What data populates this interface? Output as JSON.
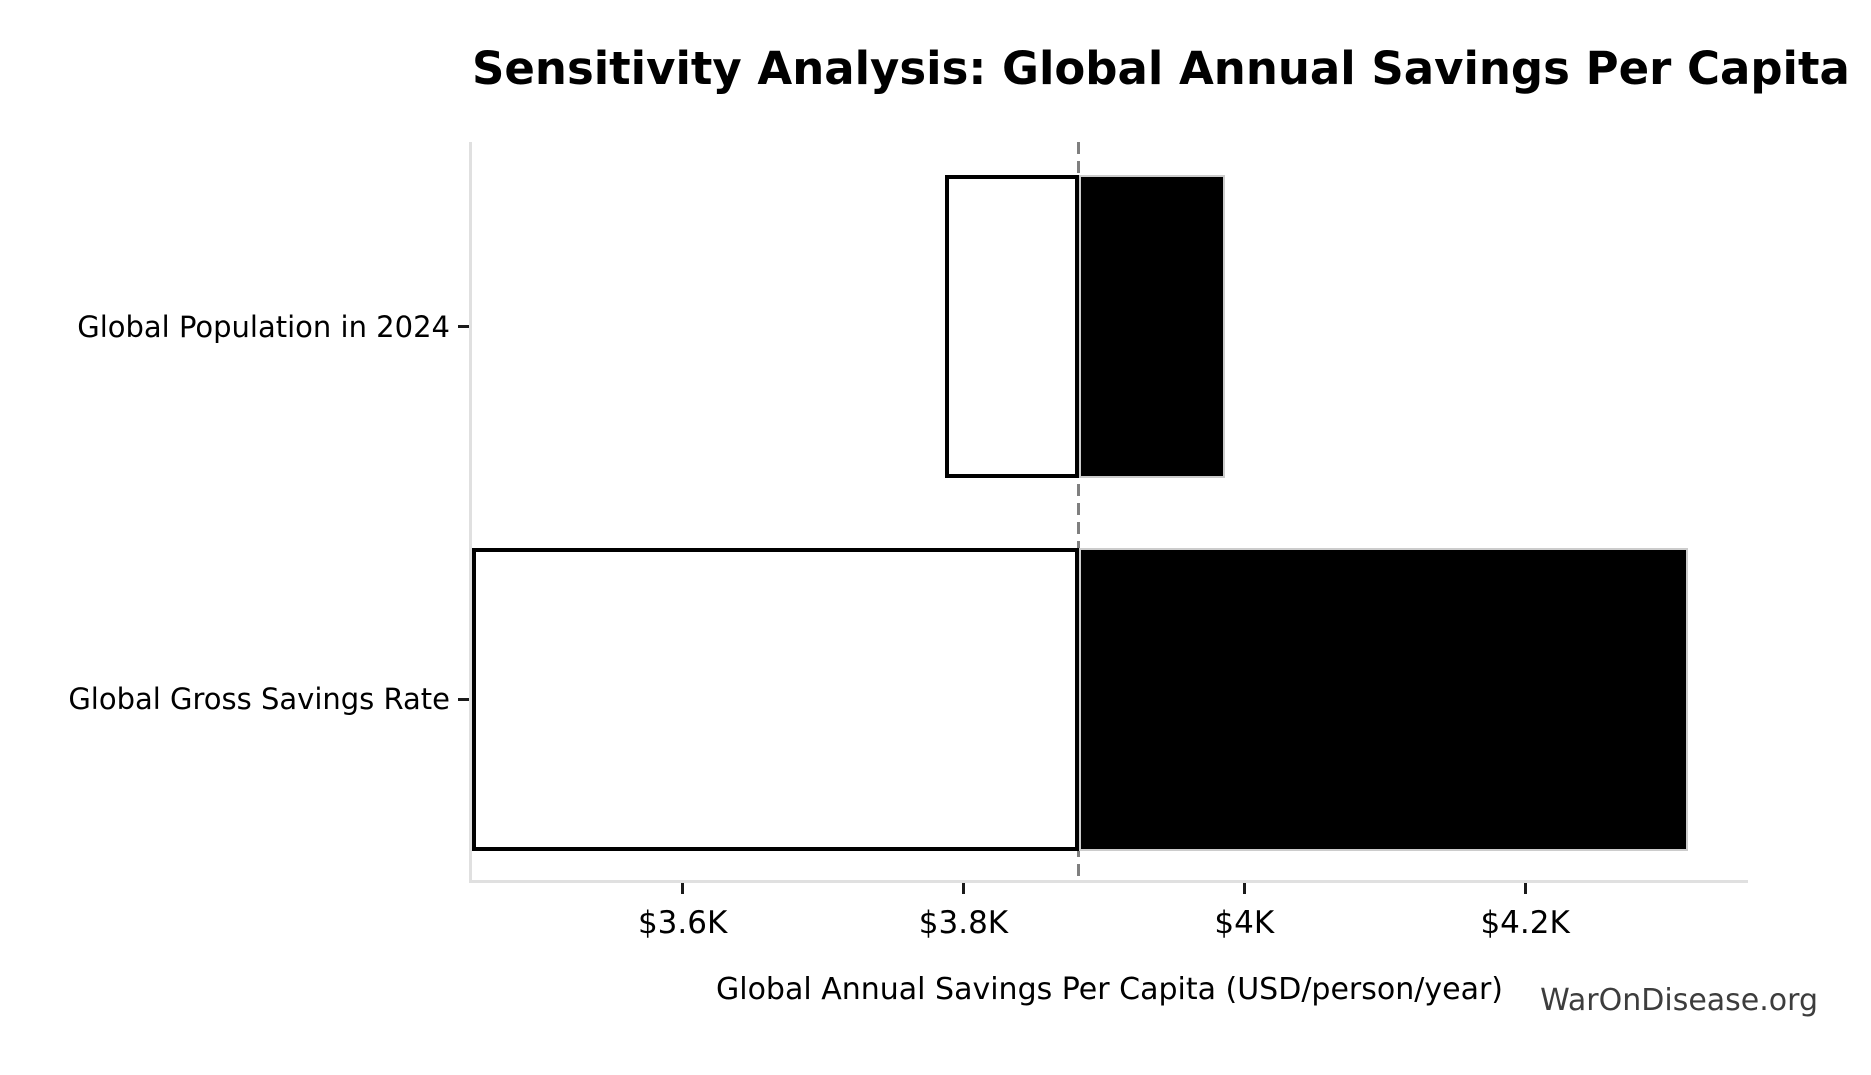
{
  "chart_data": {
    "type": "bar",
    "variant": "tornado-sensitivity-horizontal",
    "title": "Sensitivity Analysis: Global Annual Savings Per Capita",
    "xlabel": "Global Annual Savings Per Capita (USD/person/year)",
    "ylabel": "",
    "watermark": "WarOnDisease.org",
    "baseline_value": 3882,
    "xlim": [
      3450,
      4358
    ],
    "grid": false,
    "legend_position": "none",
    "xticks": [
      {
        "value": 3600,
        "label": "$3.6K"
      },
      {
        "value": 3800,
        "label": "$3.8K"
      },
      {
        "value": 4000,
        "label": "$4K"
      },
      {
        "value": 4200,
        "label": "$4.2K"
      }
    ],
    "categories": [
      "Global Population in 2024",
      "Global Gross Savings Rate"
    ],
    "series": [
      {
        "name": "low-side (white)",
        "values": [
          3787,
          3450
        ]
      },
      {
        "name": "high-side (black)",
        "values": [
          3986,
          4316
        ]
      }
    ],
    "parameters": [
      {
        "name": "Global Population in 2024",
        "low": 3787,
        "high": 3986
      },
      {
        "name": "Global Gross Savings Rate",
        "low": 3450,
        "high": 4316
      }
    ],
    "colors": {
      "low_fill": "#ffffff",
      "low_edge": "#000000",
      "high_fill": "#000000",
      "high_edge": "#cccccc",
      "baseline_line": "#7f7f7f",
      "spine": "#e0e0e0",
      "tick": "#1a1a1a",
      "text": "#000000",
      "watermark": "#3d3d3d"
    }
  }
}
